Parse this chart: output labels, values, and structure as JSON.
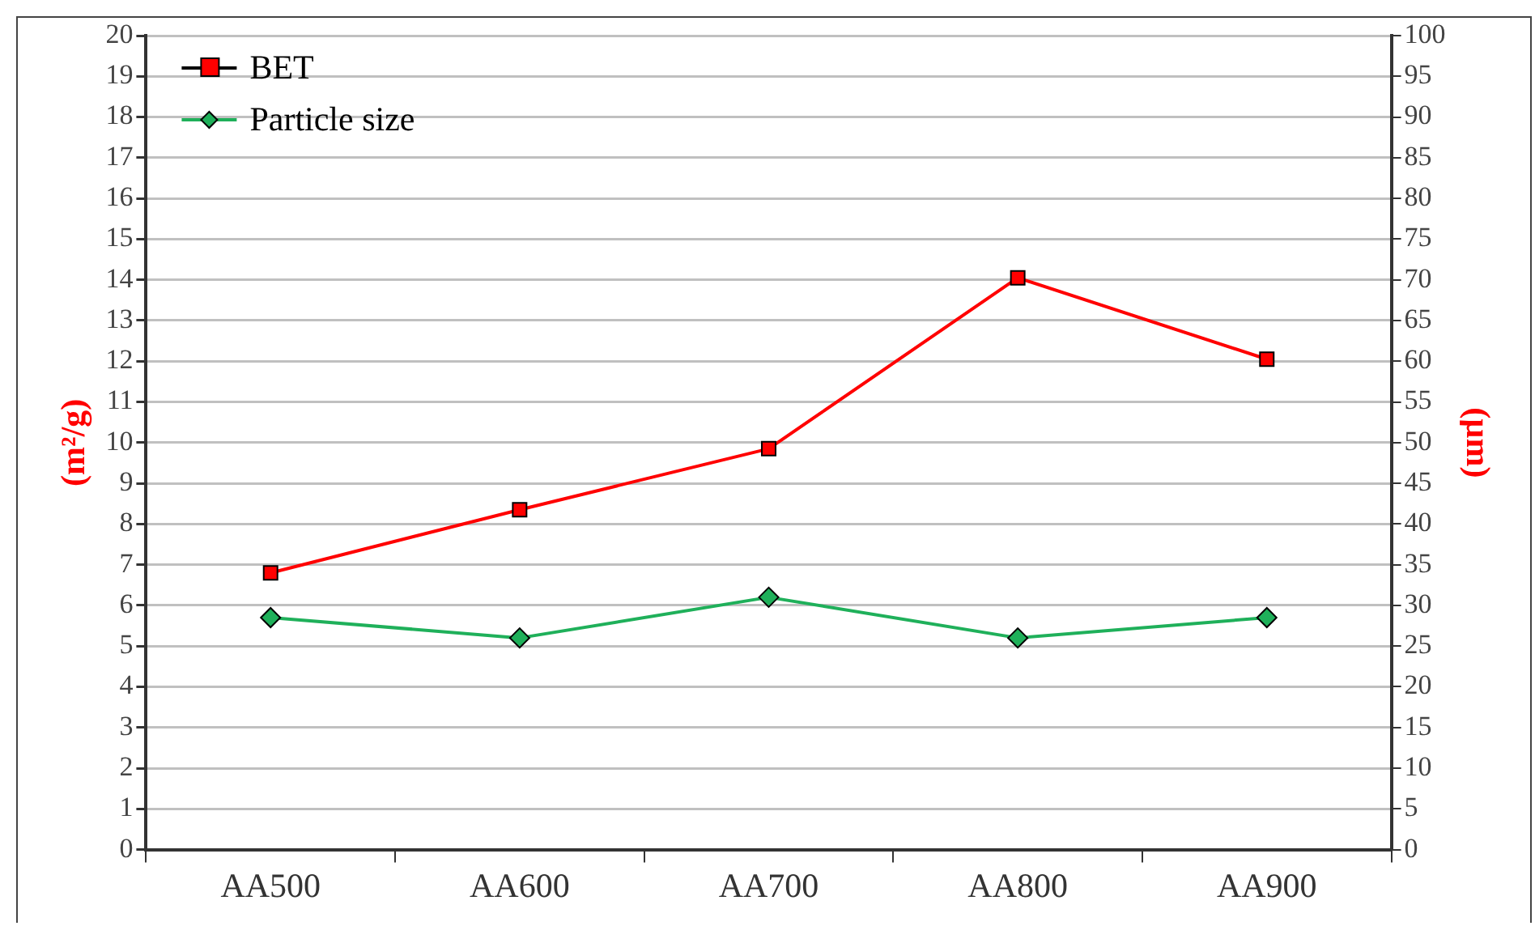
{
  "chart_data": {
    "type": "line",
    "ylabel": "(m²/g)",
    "y2label": "(µm)",
    "categories": [
      "AA500",
      "AA600",
      "AA700",
      "AA800",
      "AA900"
    ],
    "series": [
      {
        "name": "BET",
        "color": "#ff0000",
        "marker": "square",
        "values": [
          6.8,
          8.35,
          9.85,
          14.05,
          12.05
        ]
      },
      {
        "name": "Particle size",
        "color": "#1fb05a",
        "marker": "diamond",
        "axis": "y2",
        "values": [
          28.5,
          26,
          31,
          26,
          28.5
        ]
      }
    ],
    "ylim": [
      0,
      20
    ],
    "yticks": [
      0,
      1,
      2,
      3,
      4,
      5,
      6,
      7,
      8,
      9,
      10,
      11,
      12,
      13,
      14,
      15,
      16,
      17,
      18,
      19,
      20
    ],
    "y2lim": [
      0,
      100
    ],
    "y2ticks": [
      0,
      5,
      10,
      15,
      20,
      25,
      30,
      35,
      40,
      45,
      50,
      55,
      60,
      65,
      70,
      75,
      80,
      85,
      90,
      95,
      100
    ],
    "grid": "y",
    "legend": "top left",
    "line_style": "solid"
  }
}
